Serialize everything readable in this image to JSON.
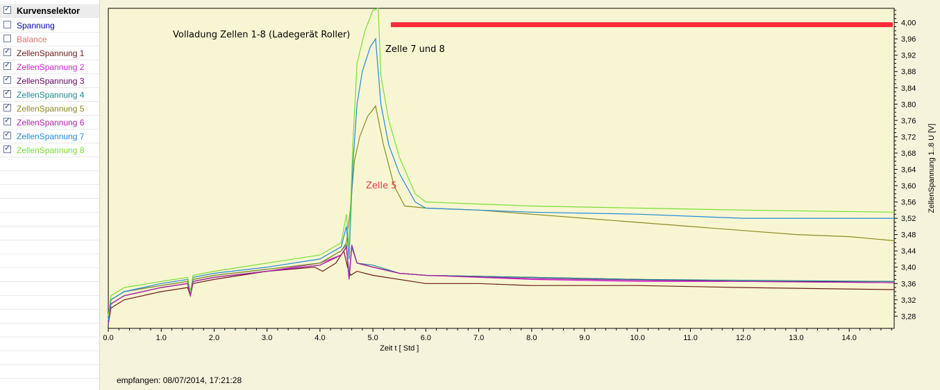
{
  "sidebar": {
    "title": {
      "label": "Kurvenselektor",
      "checked": true,
      "color": "#000000"
    },
    "items": [
      {
        "label": "Spannung",
        "checked": false,
        "color": "#0000aa"
      },
      {
        "label": "Balance",
        "checked": false,
        "color": "#e07070"
      },
      {
        "label": "ZellenSpannung 1",
        "checked": true,
        "color": "#6b1a1a"
      },
      {
        "label": "ZellenSpannung 2",
        "checked": true,
        "color": "#cc22cc"
      },
      {
        "label": "ZellenSpannung 3",
        "checked": true,
        "color": "#660066"
      },
      {
        "label": "ZellenSpannung 4",
        "checked": true,
        "color": "#1a8a8a"
      },
      {
        "label": "ZellenSpannung 5",
        "checked": true,
        "color": "#8a8a22"
      },
      {
        "label": "ZellenSpannung 6",
        "checked": true,
        "color": "#aa22aa"
      },
      {
        "label": "ZellenSpannung 7",
        "checked": true,
        "color": "#2288dd"
      },
      {
        "label": "ZellenSpannung 8",
        "checked": true,
        "color": "#77dd33"
      }
    ]
  },
  "footer": {
    "received": "empfangen: 08/07/2014, 17:21:28"
  },
  "annotations": {
    "title": "Volladung Zellen 1-8 (Ladegerät Roller)",
    "cells78": "Zelle 7 und 8",
    "cell5": "Zelle 5",
    "cell5_color": "#e03a4a",
    "marker_color": "#ff2a3a",
    "marker_value": 4.0
  },
  "chart_data": {
    "type": "line",
    "xlabel": "Zeit  t  [ Std ]",
    "ylabel": "ZellenSpannung 1..8  U  [V]",
    "xlim": [
      0,
      14.85
    ],
    "ylim": [
      3.25,
      4.035
    ],
    "x_ticks": [
      "0.0",
      "1.0",
      "2.0",
      "3.0",
      "4.0",
      "5.0",
      "6.0",
      "7.0",
      "8.0",
      "9.0",
      "10.0",
      "11.0",
      "12.0",
      "13.0",
      "14.0"
    ],
    "y_ticks": [
      "3,28",
      "3,32",
      "3,36",
      "3,40",
      "3,44",
      "3,48",
      "3,52",
      "3,56",
      "3,60",
      "3,64",
      "3,68",
      "3,72",
      "3,76",
      "3,80",
      "3,84",
      "3,88",
      "3,92",
      "3,96",
      "4,00"
    ],
    "grid": false,
    "series": [
      {
        "name": "ZellenSpannung 1",
        "color": "#6b1a1a",
        "points": [
          [
            0,
            3.26
          ],
          [
            0.05,
            3.3
          ],
          [
            0.3,
            3.32
          ],
          [
            1.0,
            3.34
          ],
          [
            1.5,
            3.35
          ],
          [
            1.55,
            3.33
          ],
          [
            1.6,
            3.36
          ],
          [
            2.0,
            3.37
          ],
          [
            3.0,
            3.39
          ],
          [
            3.9,
            3.4
          ],
          [
            4.05,
            3.39
          ],
          [
            4.3,
            3.41
          ],
          [
            4.45,
            3.44
          ],
          [
            4.52,
            3.4
          ],
          [
            4.58,
            3.38
          ],
          [
            4.7,
            3.39
          ],
          [
            5.0,
            3.38
          ],
          [
            6.0,
            3.36
          ],
          [
            7.0,
            3.36
          ],
          [
            8.0,
            3.355
          ],
          [
            10.0,
            3.355
          ],
          [
            12.0,
            3.35
          ],
          [
            14.85,
            3.345
          ]
        ]
      },
      {
        "name": "ZellenSpannung 2",
        "color": "#cc22cc",
        "points": [
          [
            0,
            3.26
          ],
          [
            0.05,
            3.31
          ],
          [
            0.3,
            3.33
          ],
          [
            1.0,
            3.35
          ],
          [
            1.5,
            3.36
          ],
          [
            1.55,
            3.33
          ],
          [
            1.6,
            3.365
          ],
          [
            2.0,
            3.375
          ],
          [
            3.0,
            3.39
          ],
          [
            4.0,
            3.41
          ],
          [
            4.4,
            3.43
          ],
          [
            4.5,
            3.45
          ],
          [
            4.55,
            3.38
          ],
          [
            4.6,
            3.45
          ],
          [
            4.7,
            3.41
          ],
          [
            5.0,
            3.4
          ],
          [
            5.5,
            3.385
          ],
          [
            6.0,
            3.38
          ],
          [
            8.0,
            3.37
          ],
          [
            10.0,
            3.365
          ],
          [
            12.0,
            3.365
          ],
          [
            14.85,
            3.362
          ]
        ]
      },
      {
        "name": "ZellenSpannung 3",
        "color": "#660066",
        "points": [
          [
            0,
            3.26
          ],
          [
            0.05,
            3.31
          ],
          [
            0.3,
            3.33
          ],
          [
            1.0,
            3.35
          ],
          [
            1.5,
            3.36
          ],
          [
            1.55,
            3.33
          ],
          [
            1.6,
            3.365
          ],
          [
            2.0,
            3.375
          ],
          [
            3.0,
            3.39
          ],
          [
            4.0,
            3.405
          ],
          [
            4.4,
            3.43
          ],
          [
            4.5,
            3.45
          ],
          [
            4.55,
            3.37
          ],
          [
            4.6,
            3.45
          ],
          [
            4.7,
            3.41
          ],
          [
            5.0,
            3.4
          ],
          [
            5.5,
            3.385
          ],
          [
            6.0,
            3.38
          ],
          [
            8.0,
            3.375
          ],
          [
            10.0,
            3.37
          ],
          [
            12.0,
            3.365
          ],
          [
            14.85,
            3.365
          ]
        ]
      },
      {
        "name": "ZellenSpannung 4",
        "color": "#1a8a8a",
        "points": [
          [
            0,
            3.27
          ],
          [
            0.05,
            3.32
          ],
          [
            0.3,
            3.34
          ],
          [
            1.0,
            3.355
          ],
          [
            1.5,
            3.365
          ],
          [
            1.55,
            3.34
          ],
          [
            1.6,
            3.37
          ],
          [
            2.0,
            3.38
          ],
          [
            3.0,
            3.395
          ],
          [
            4.0,
            3.41
          ],
          [
            4.4,
            3.44
          ],
          [
            4.5,
            3.455
          ],
          [
            4.55,
            3.38
          ],
          [
            4.6,
            3.45
          ],
          [
            4.7,
            3.41
          ],
          [
            5.0,
            3.405
          ],
          [
            5.5,
            3.385
          ],
          [
            6.0,
            3.38
          ],
          [
            8.0,
            3.375
          ],
          [
            10.0,
            3.37
          ],
          [
            12.0,
            3.368
          ],
          [
            14.85,
            3.365
          ]
        ]
      },
      {
        "name": "ZellenSpannung 5",
        "color": "#8a8a22",
        "points": [
          [
            0,
            3.27
          ],
          [
            0.05,
            3.32
          ],
          [
            0.3,
            3.34
          ],
          [
            1.0,
            3.355
          ],
          [
            1.5,
            3.365
          ],
          [
            1.55,
            3.34
          ],
          [
            1.6,
            3.37
          ],
          [
            2.0,
            3.38
          ],
          [
            3.0,
            3.395
          ],
          [
            4.0,
            3.41
          ],
          [
            4.4,
            3.44
          ],
          [
            4.5,
            3.46
          ],
          [
            4.57,
            3.54
          ],
          [
            4.65,
            3.66
          ],
          [
            4.75,
            3.72
          ],
          [
            4.9,
            3.77
          ],
          [
            5.05,
            3.795
          ],
          [
            5.2,
            3.7
          ],
          [
            5.4,
            3.6
          ],
          [
            5.6,
            3.55
          ],
          [
            6.0,
            3.545
          ],
          [
            7.0,
            3.54
          ],
          [
            8.0,
            3.53
          ],
          [
            9.0,
            3.52
          ],
          [
            10.0,
            3.51
          ],
          [
            11.0,
            3.5
          ],
          [
            12.0,
            3.49
          ],
          [
            13.0,
            3.48
          ],
          [
            14.0,
            3.475
          ],
          [
            14.85,
            3.465
          ]
        ]
      },
      {
        "name": "ZellenSpannung 6",
        "color": "#aa22aa",
        "points": [
          [
            0,
            3.26
          ],
          [
            0.05,
            3.31
          ],
          [
            0.3,
            3.33
          ],
          [
            1.0,
            3.35
          ],
          [
            1.5,
            3.36
          ],
          [
            1.55,
            3.33
          ],
          [
            1.6,
            3.365
          ],
          [
            2.0,
            3.375
          ],
          [
            3.0,
            3.39
          ],
          [
            4.0,
            3.405
          ],
          [
            4.4,
            3.43
          ],
          [
            4.5,
            3.45
          ],
          [
            4.55,
            3.37
          ],
          [
            4.6,
            3.455
          ],
          [
            4.7,
            3.41
          ],
          [
            5.0,
            3.4
          ],
          [
            5.5,
            3.385
          ],
          [
            6.0,
            3.38
          ],
          [
            8.0,
            3.372
          ],
          [
            10.0,
            3.368
          ],
          [
            12.0,
            3.365
          ],
          [
            14.85,
            3.362
          ]
        ]
      },
      {
        "name": "ZellenSpannung 7",
        "color": "#2288dd",
        "points": [
          [
            0,
            3.27
          ],
          [
            0.05,
            3.32
          ],
          [
            0.3,
            3.34
          ],
          [
            1.0,
            3.36
          ],
          [
            1.5,
            3.37
          ],
          [
            1.55,
            3.34
          ],
          [
            1.6,
            3.375
          ],
          [
            2.0,
            3.385
          ],
          [
            3.0,
            3.4
          ],
          [
            4.0,
            3.42
          ],
          [
            4.4,
            3.45
          ],
          [
            4.5,
            3.5
          ],
          [
            4.55,
            3.42
          ],
          [
            4.62,
            3.65
          ],
          [
            4.7,
            3.8
          ],
          [
            4.8,
            3.88
          ],
          [
            4.95,
            3.94
          ],
          [
            5.05,
            3.96
          ],
          [
            5.15,
            3.8
          ],
          [
            5.3,
            3.7
          ],
          [
            5.5,
            3.63
          ],
          [
            5.8,
            3.56
          ],
          [
            6.0,
            3.545
          ],
          [
            7.0,
            3.54
          ],
          [
            8.0,
            3.535
          ],
          [
            10.0,
            3.53
          ],
          [
            12.0,
            3.52
          ],
          [
            13.0,
            3.52
          ],
          [
            14.85,
            3.52
          ]
        ]
      },
      {
        "name": "ZellenSpannung 8",
        "color": "#77dd33",
        "points": [
          [
            0,
            3.28
          ],
          [
            0.05,
            3.33
          ],
          [
            0.3,
            3.35
          ],
          [
            1.0,
            3.365
          ],
          [
            1.5,
            3.375
          ],
          [
            1.55,
            3.34
          ],
          [
            1.6,
            3.38
          ],
          [
            2.0,
            3.39
          ],
          [
            3.0,
            3.41
          ],
          [
            4.0,
            3.43
          ],
          [
            4.4,
            3.46
          ],
          [
            4.5,
            3.53
          ],
          [
            4.55,
            3.45
          ],
          [
            4.62,
            3.7
          ],
          [
            4.7,
            3.9
          ],
          [
            4.85,
            3.98
          ],
          [
            5.0,
            4.03
          ],
          [
            5.1,
            4.035
          ],
          [
            5.15,
            3.87
          ],
          [
            5.3,
            3.76
          ],
          [
            5.5,
            3.67
          ],
          [
            5.8,
            3.58
          ],
          [
            6.0,
            3.56
          ],
          [
            7.0,
            3.555
          ],
          [
            8.0,
            3.55
          ],
          [
            10.0,
            3.545
          ],
          [
            12.0,
            3.54
          ],
          [
            14.85,
            3.535
          ]
        ]
      }
    ]
  }
}
